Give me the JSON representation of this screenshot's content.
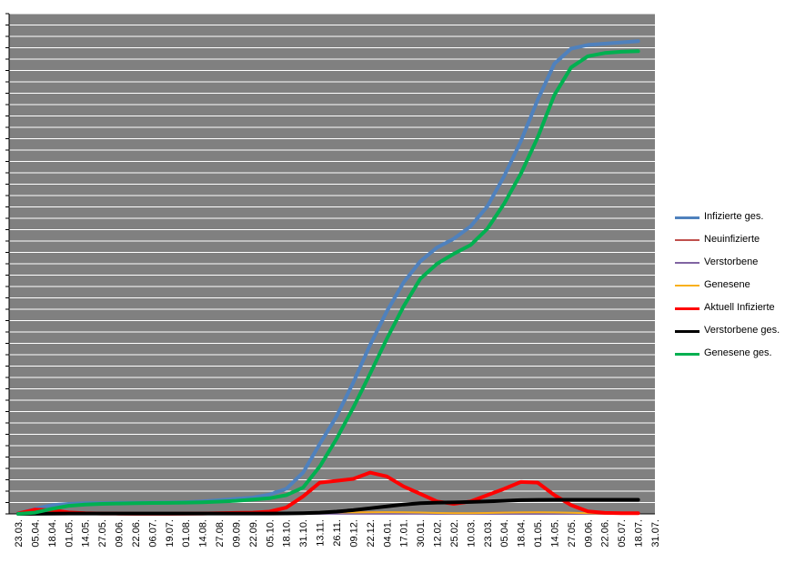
{
  "chart_data": {
    "type": "line",
    "title": "",
    "xlabel": "",
    "ylabel": "",
    "grid": true,
    "legend_position": "right",
    "plot_background": "#808080",
    "gridline_color": "#ffffff",
    "categories": [
      "23.03.",
      "05.04.",
      "18.04.",
      "01.05.",
      "14.05.",
      "27.05.",
      "09.06.",
      "22.06.",
      "06.07.",
      "19.07.",
      "01.08.",
      "14.08.",
      "27.08.",
      "09.09.",
      "22.09.",
      "05.10.",
      "18.10.",
      "31.10.",
      "13.11.",
      "26.11.",
      "09.12.",
      "22.12.",
      "04.01.",
      "17.01.",
      "30.01.",
      "12.02.",
      "25.02.",
      "10.03.",
      "23.03.",
      "05.04.",
      "18.04.",
      "01.05.",
      "14.05.",
      "27.05.",
      "09.06.",
      "22.06.",
      "05.07.",
      "18.07.",
      "31.07."
    ],
    "series": [
      {
        "name": "Infizierte ges.",
        "color": "#4f81bd",
        "width": 4,
        "values": [
          3,
          40,
          70,
          80,
          85,
          86,
          88,
          89,
          90,
          91,
          94,
          100,
          110,
          120,
          130,
          155,
          200,
          330,
          560,
          780,
          1050,
          1350,
          1620,
          1850,
          2020,
          2130,
          2200,
          2300,
          2460,
          2700,
          2980,
          3310,
          3600,
          3720,
          3750,
          3760,
          3770,
          3780,
          null
        ]
      },
      {
        "name": "Neuinfizierte",
        "color": "#c0504d",
        "width": 2,
        "values": [
          0,
          3,
          2,
          1,
          0,
          0,
          0,
          0,
          0,
          0,
          0,
          0,
          1,
          1,
          1,
          2,
          4,
          8,
          12,
          11,
          13,
          14,
          13,
          12,
          8,
          6,
          5,
          6,
          8,
          11,
          12,
          13,
          10,
          5,
          3,
          2,
          1,
          1,
          null
        ]
      },
      {
        "name": "Verstorbene",
        "color": "#8064a2",
        "width": 2,
        "values": [
          0,
          0,
          0,
          0,
          0,
          0,
          0,
          0,
          0,
          0,
          0,
          0,
          0,
          0,
          0,
          0,
          0,
          0,
          1,
          1,
          1,
          1,
          1,
          1,
          1,
          0,
          0,
          0,
          0,
          0,
          0,
          0,
          0,
          0,
          0,
          0,
          0,
          0,
          null
        ]
      },
      {
        "name": "Genesene",
        "color": "#f9b01b",
        "width": 2,
        "values": [
          0,
          2,
          3,
          2,
          1,
          0,
          0,
          0,
          0,
          0,
          0,
          0,
          1,
          1,
          1,
          1,
          3,
          7,
          11,
          12,
          12,
          13,
          14,
          13,
          11,
          7,
          6,
          6,
          7,
          10,
          12,
          13,
          12,
          9,
          5,
          2,
          1,
          1,
          null
        ]
      },
      {
        "name": "Aktuell Infizierte",
        "color": "#ff0000",
        "width": 4,
        "values": [
          3,
          35,
          30,
          12,
          5,
          3,
          2,
          1,
          1,
          1,
          2,
          3,
          6,
          8,
          10,
          18,
          50,
          140,
          250,
          265,
          280,
          330,
          300,
          220,
          160,
          100,
          80,
          100,
          150,
          200,
          255,
          250,
          150,
          70,
          20,
          8,
          5,
          5,
          null
        ]
      },
      {
        "name": "Verstorbene ges.",
        "color": "#000000",
        "width": 4,
        "values": [
          0,
          1,
          2,
          3,
          3,
          3,
          3,
          3,
          3,
          3,
          3,
          3,
          3,
          3,
          3,
          3,
          4,
          6,
          10,
          18,
          30,
          45,
          60,
          75,
          85,
          90,
          92,
          95,
          100,
          105,
          110,
          112,
          113,
          113,
          113,
          113,
          113,
          113,
          null
        ]
      },
      {
        "name": "Genesene ges.",
        "color": "#00b050",
        "width": 4,
        "values": [
          0,
          10,
          40,
          65,
          75,
          80,
          83,
          85,
          87,
          88,
          90,
          93,
          98,
          105,
          115,
          125,
          150,
          210,
          380,
          600,
          850,
          1120,
          1400,
          1660,
          1880,
          2000,
          2080,
          2150,
          2280,
          2480,
          2720,
          3010,
          3350,
          3570,
          3660,
          3685,
          3695,
          3700,
          null
        ]
      }
    ],
    "ylim": [
      0,
      4000
    ]
  }
}
